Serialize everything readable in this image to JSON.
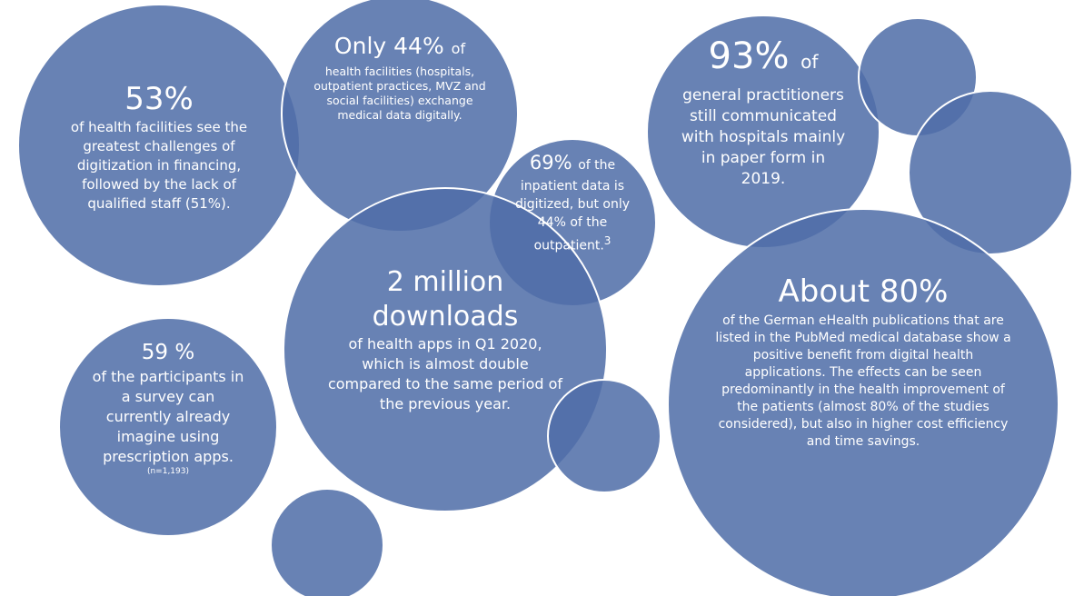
{
  "bubbles": [
    {
      "lead": "53%",
      "body": "of health facilities see the greatest challenges of digitization in financing, followed by the lack of qualified staff (51%)."
    },
    {
      "lead": "Only 44%",
      "lead_tail": "of",
      "body": "health facilities (hospitals, outpatient practices, MVZ and social facilities) exchange medical data digitally."
    },
    {
      "lead": "69%",
      "lead_tail": "of the",
      "body": "inpatient data is digitized, but only 44% of the outpatient.",
      "footnote": "3"
    },
    {
      "lead": "93%",
      "lead_tail": "of",
      "body": "general practitioners still communicated with hospitals mainly in paper form in 2019."
    },
    {
      "lead": "2 million downloads",
      "body": "of health apps in Q1 2020, which is almost double compared to the same period of the previous year."
    },
    {
      "lead": "59 %",
      "body": "of the participants in a survey can currently already imagine using prescription apps.",
      "note": "(n=1,193)"
    },
    {
      "lead": "About 80%",
      "body": "of the German eHealth publications that are listed in the PubMed medical database show a positive benefit from digital health applications. The effects can be seen predominantly in the health improvement of the patients (almost 80% of the studies considered), but also in higher cost efficiency and time savings."
    }
  ]
}
